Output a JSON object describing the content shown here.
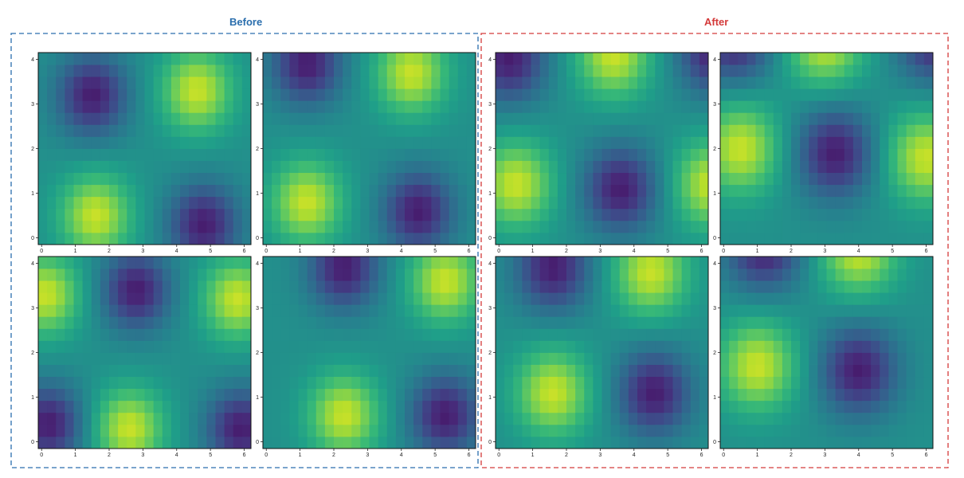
{
  "groups": [
    {
      "title": "Before",
      "color": "#2a6ead"
    },
    {
      "title": "After",
      "color": "#d43a3a"
    }
  ],
  "chart_data": {
    "type": "heatmap",
    "colormap": "viridis",
    "x_ticks": [
      0,
      1,
      2,
      3,
      4,
      5,
      6
    ],
    "y_ticks": [
      0,
      1,
      2,
      3,
      4
    ],
    "xlim": [
      -0.1,
      6.2
    ],
    "ylim": [
      -0.15,
      4.15
    ],
    "grid": [
      24,
      16
    ],
    "panels": [
      {
        "group": "Before",
        "fields": [
          {
            "x": 1.6,
            "y": 0.5,
            "s": 1
          },
          {
            "x": 4.6,
            "y": 3.3,
            "s": 1
          },
          {
            "x": 1.5,
            "y": 3.2,
            "s": -1
          },
          {
            "x": 4.8,
            "y": 0.3,
            "s": -1
          }
        ],
        "width": 0.72
      },
      {
        "group": "Before",
        "fields": [
          {
            "x": 1.2,
            "y": 0.8,
            "s": 1
          },
          {
            "x": 4.3,
            "y": 3.7,
            "s": 1
          },
          {
            "x": 1.2,
            "y": 3.9,
            "s": -1
          },
          {
            "x": 4.5,
            "y": 0.6,
            "s": -1
          }
        ],
        "width": 0.72
      },
      {
        "group": "Before",
        "fields": [
          {
            "x": 2.6,
            "y": 0.3,
            "s": 1
          },
          {
            "x": 0.1,
            "y": 3.3,
            "s": 1
          },
          {
            "x": 5.8,
            "y": 3.2,
            "s": 1
          },
          {
            "x": 2.8,
            "y": 3.4,
            "s": -1
          },
          {
            "x": 0.2,
            "y": 0.4,
            "s": -1
          },
          {
            "x": 5.9,
            "y": 0.3,
            "s": -1
          }
        ],
        "width": 0.7
      },
      {
        "group": "Before",
        "fields": [
          {
            "x": 2.3,
            "y": 0.6,
            "s": 1
          },
          {
            "x": 5.3,
            "y": 3.6,
            "s": 1
          },
          {
            "x": 2.3,
            "y": 3.9,
            "s": -1
          },
          {
            "x": 5.3,
            "y": 0.6,
            "s": -1
          }
        ],
        "width": 0.72
      },
      {
        "group": "After",
        "fields": [
          {
            "x": 0.5,
            "y": 1.2,
            "s": 1
          },
          {
            "x": 3.4,
            "y": 4.1,
            "s": 1
          },
          {
            "x": 6.3,
            "y": 1.2,
            "s": 1
          },
          {
            "x": 3.6,
            "y": 1.1,
            "s": -1
          },
          {
            "x": 0.3,
            "y": 4.0,
            "s": -1
          },
          {
            "x": 6.4,
            "y": 4.2,
            "s": -1
          }
        ],
        "width": 0.75
      },
      {
        "group": "After",
        "fields": [
          {
            "x": 0.5,
            "y": 2.0,
            "s": 1
          },
          {
            "x": 3.0,
            "y": 4.4,
            "s": 1
          },
          {
            "x": 6.0,
            "y": 1.8,
            "s": 1
          },
          {
            "x": 3.3,
            "y": 1.9,
            "s": -1
          },
          {
            "x": 0.3,
            "y": 4.5,
            "s": -1
          },
          {
            "x": 6.3,
            "y": 4.5,
            "s": -1
          }
        ],
        "width": 0.78
      },
      {
        "group": "After",
        "fields": [
          {
            "x": 1.6,
            "y": 1.1,
            "s": 1
          },
          {
            "x": 4.5,
            "y": 3.8,
            "s": 1
          },
          {
            "x": 1.6,
            "y": 3.9,
            "s": -1
          },
          {
            "x": 4.6,
            "y": 1.1,
            "s": -1
          }
        ],
        "width": 0.75
      },
      {
        "group": "After",
        "fields": [
          {
            "x": 1.0,
            "y": 1.7,
            "s": 1
          },
          {
            "x": 4.0,
            "y": 4.3,
            "s": 1
          },
          {
            "x": 1.2,
            "y": 4.4,
            "s": -1
          },
          {
            "x": 4.0,
            "y": 1.6,
            "s": -1
          }
        ],
        "width": 0.78
      }
    ]
  }
}
